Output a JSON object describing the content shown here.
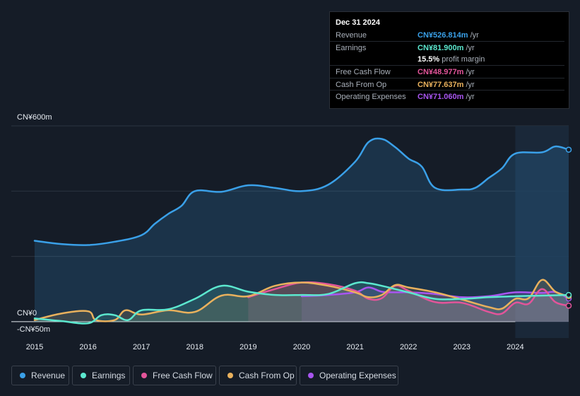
{
  "tooltip": {
    "date": "Dec 31 2024",
    "rows": [
      {
        "label": "Revenue",
        "value": "CN¥526.814m",
        "unit": "/yr",
        "color": "#3aa0e8"
      },
      {
        "label": "Earnings",
        "value": "CN¥81.900m",
        "unit": "/yr",
        "color": "#5ce8cf"
      },
      {
        "label": "",
        "value": "15.5%",
        "unit": "profit margin",
        "color": "#ffffff"
      },
      {
        "label": "Free Cash Flow",
        "value": "CN¥48.977m",
        "unit": "/yr",
        "color": "#e3559a"
      },
      {
        "label": "Cash From Op",
        "value": "CN¥77.637m",
        "unit": "/yr",
        "color": "#e9b15d"
      },
      {
        "label": "Operating Expenses",
        "value": "CN¥71.060m",
        "unit": "/yr",
        "color": "#a855f0"
      }
    ]
  },
  "axis": {
    "y_top_label": "CN¥600m",
    "y_zero_label": "CN¥0",
    "y_bottom_label": "-CN¥50m"
  },
  "legend": [
    {
      "label": "Revenue",
      "color": "#3aa0e8"
    },
    {
      "label": "Earnings",
      "color": "#5ce8cf"
    },
    {
      "label": "Free Cash Flow",
      "color": "#e3559a"
    },
    {
      "label": "Cash From Op",
      "color": "#e9b15d"
    },
    {
      "label": "Operating Expenses",
      "color": "#a855f0"
    }
  ],
  "chart_data": {
    "type": "line",
    "title": "",
    "xlabel": "",
    "ylabel": "",
    "ylim": [
      -50,
      600
    ],
    "xlim": [
      2015,
      2025
    ],
    "x_ticks": [
      "2015",
      "2016",
      "2017",
      "2018",
      "2019",
      "2020",
      "2021",
      "2022",
      "2023",
      "2024"
    ],
    "highlight_from": 2024,
    "series": [
      {
        "name": "Revenue",
        "color": "#3aa0e8",
        "x": [
          2015,
          2015.5,
          2016,
          2016.5,
          2017,
          2017.25,
          2017.5,
          2017.75,
          2018,
          2018.5,
          2019,
          2019.5,
          2020,
          2020.5,
          2021,
          2021.25,
          2021.5,
          2021.75,
          2022,
          2022.25,
          2022.5,
          2023,
          2023.25,
          2023.5,
          2023.75,
          2024,
          2024.5,
          2024.75,
          2025
        ],
        "y": [
          248,
          238,
          235,
          245,
          265,
          300,
          330,
          355,
          400,
          398,
          418,
          410,
          400,
          420,
          490,
          550,
          560,
          535,
          500,
          475,
          410,
          405,
          410,
          440,
          470,
          515,
          519,
          537,
          527
        ]
      },
      {
        "name": "Earnings",
        "color": "#5ce8cf",
        "x": [
          2015,
          2015.5,
          2016,
          2016.25,
          2016.5,
          2016.75,
          2017,
          2017.5,
          2018,
          2018.5,
          2019,
          2019.5,
          2020,
          2020.5,
          2021,
          2021.25,
          2021.5,
          2021.75,
          2022,
          2022.5,
          2023,
          2023.5,
          2024,
          2024.5,
          2025
        ],
        "y": [
          10,
          2,
          -5,
          20,
          20,
          5,
          35,
          38,
          70,
          110,
          92,
          82,
          82,
          85,
          118,
          118,
          110,
          100,
          90,
          70,
          70,
          75,
          78,
          80,
          82
        ]
      },
      {
        "name": "Free Cash Flow",
        "color": "#e3559a",
        "x": [
          2019,
          2019.5,
          2020,
          2020.5,
          2021,
          2021.25,
          2021.5,
          2021.75,
          2022,
          2022.5,
          2023,
          2023.5,
          2023.75,
          2024,
          2024.25,
          2024.5,
          2024.75,
          2025
        ],
        "y": [
          75,
          100,
          120,
          115,
          95,
          70,
          72,
          110,
          95,
          60,
          58,
          30,
          25,
          58,
          55,
          100,
          60,
          49
        ]
      },
      {
        "name": "Cash From Op",
        "color": "#e9b15d",
        "x": [
          2015,
          2015.5,
          2016,
          2016.15,
          2016.5,
          2016.7,
          2017,
          2017.5,
          2018,
          2018.5,
          2019,
          2019.5,
          2020,
          2020.5,
          2021,
          2021.25,
          2021.5,
          2021.75,
          2022,
          2022.5,
          2023,
          2023.5,
          2023.75,
          2024,
          2024.25,
          2024.5,
          2024.75,
          2025
        ],
        "y": [
          5,
          25,
          32,
          5,
          5,
          35,
          22,
          35,
          30,
          80,
          78,
          110,
          120,
          110,
          90,
          75,
          82,
          112,
          105,
          90,
          68,
          45,
          40,
          70,
          72,
          128,
          92,
          78
        ]
      },
      {
        "name": "Operating Expenses",
        "color": "#a855f0",
        "x": [
          2020,
          2020.5,
          2021,
          2021.25,
          2021.5,
          2021.75,
          2022,
          2022.5,
          2023,
          2023.5,
          2024,
          2024.5,
          2024.75,
          2025
        ],
        "y": [
          78,
          82,
          90,
          105,
          92,
          90,
          90,
          85,
          75,
          78,
          90,
          88,
          91,
          71
        ]
      }
    ]
  }
}
